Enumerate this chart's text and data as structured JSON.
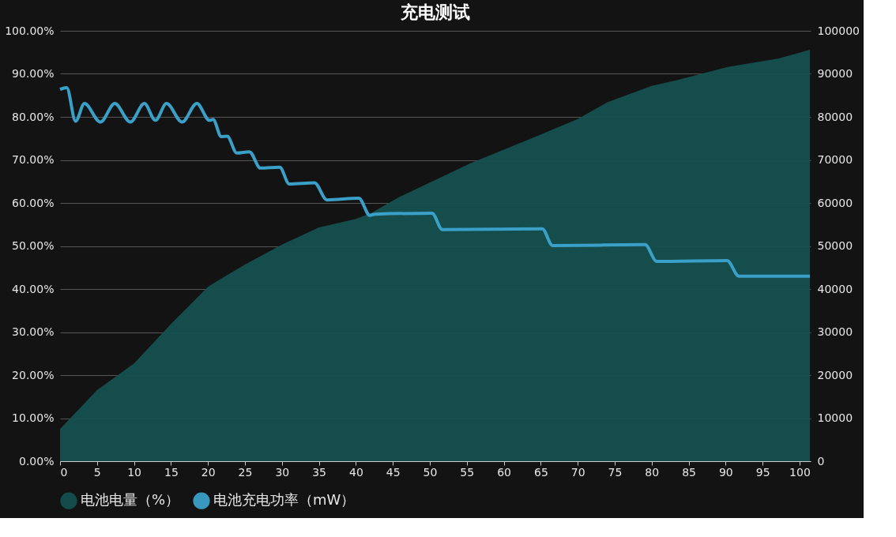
{
  "chart_data": {
    "type": "area",
    "title": "充电测试",
    "series": [
      {
        "name": "电池电量（%）",
        "color": "#14504e",
        "x": [
          0,
          5,
          10,
          15,
          20,
          21,
          25,
          30,
          35,
          40,
          42,
          46,
          55.5,
          64.7,
          70,
          74,
          80,
          83.3,
          90.3,
          97.2,
          101.4
        ],
        "values": [
          7.5,
          16.5,
          22.7,
          31.9,
          40.5,
          41.6,
          45.7,
          50.3,
          54.3,
          56.3,
          57.6,
          61.5,
          69.2,
          75.7,
          79.5,
          83.4,
          87.2,
          88.5,
          91.6,
          93.6,
          95.6
        ]
      },
      {
        "name": "电池充电功率（mW）",
        "type": "line",
        "axis": "y2",
        "color": "#3aa0c8",
        "x": [
          0,
          0.9,
          2.1,
          3.3,
          5.45,
          7.4,
          9.5,
          11.4,
          12.9,
          14.4,
          16.5,
          18.5,
          20.2,
          20.7,
          21.8,
          22.6,
          23.9,
          25.6,
          27.1,
          29.7,
          31.0,
          34.4,
          36.1,
          40.4,
          41.9,
          42.6,
          50.3,
          51.7,
          65.2,
          66.6,
          79.1,
          80.7,
          90.2,
          91.8,
          101.4
        ],
        "values": [
          86400,
          86800,
          79000,
          83100,
          78800,
          83100,
          78800,
          83100,
          79200,
          83100,
          78800,
          83100,
          79200,
          79400,
          75400,
          75500,
          71600,
          71900,
          68100,
          68300,
          64400,
          64700,
          60700,
          61100,
          57100,
          57400,
          57600,
          53800,
          54000,
          50100,
          50300,
          46400,
          46600,
          43000,
          43000
        ]
      }
    ],
    "xlim": [
      0,
      101.5
    ],
    "xticks": [
      0,
      5,
      10,
      15,
      20,
      25,
      30,
      35,
      40,
      45,
      50,
      55,
      60,
      65,
      70,
      75,
      80,
      85,
      90,
      95,
      100
    ],
    "ylim": [
      0,
      100
    ],
    "yticks": [
      {
        "value": 0,
        "label": "0.00%"
      },
      {
        "value": 10,
        "label": "10.00%"
      },
      {
        "value": 20,
        "label": "20.00%"
      },
      {
        "value": 30,
        "label": "30.00%"
      },
      {
        "value": 40,
        "label": "40.00%"
      },
      {
        "value": 50,
        "label": "50.00%"
      },
      {
        "value": 60,
        "label": "60.00%"
      },
      {
        "value": 70,
        "label": "70.00%"
      },
      {
        "value": 80,
        "label": "80.00%"
      },
      {
        "value": 90,
        "label": "90.00%"
      },
      {
        "value": 100,
        "label": "100.00%"
      }
    ],
    "y2lim": [
      0,
      100000
    ],
    "y2ticks": [
      0,
      10000,
      20000,
      30000,
      40000,
      50000,
      60000,
      70000,
      80000,
      90000,
      100000
    ],
    "grid": "y",
    "legend": "bottom"
  }
}
